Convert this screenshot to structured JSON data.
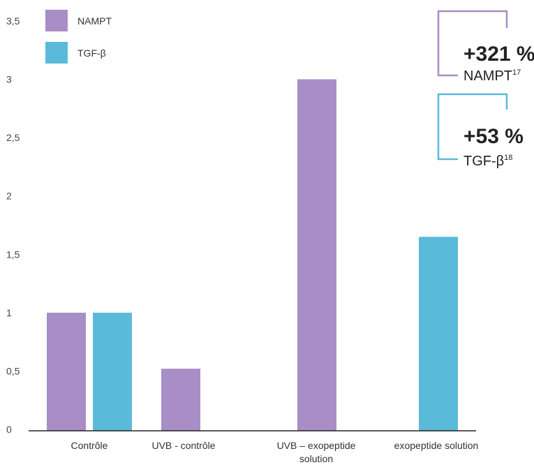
{
  "chart_data": {
    "type": "bar",
    "title": "",
    "xlabel": "",
    "ylabel": "",
    "ylim": [
      0,
      3.5
    ],
    "yticks": [
      "0",
      "0,5",
      "1",
      "1,5",
      "2",
      "2,5",
      "3",
      "3,5"
    ],
    "categories": [
      [
        "Contrôle"
      ],
      [
        "UVB - contrôle"
      ],
      [
        "UVB – exopeptide",
        "solution"
      ],
      [
        "exopeptide solution"
      ]
    ],
    "series": [
      {
        "name": "NAMPT",
        "color": "#a98dc6",
        "values": [
          1,
          0.52,
          3.0,
          null
        ]
      },
      {
        "name": "TGF-β",
        "color": "#5bbad9",
        "values": [
          1,
          null,
          null,
          1.65
        ]
      }
    ],
    "legend": "top-left",
    "grid": false,
    "annotations": [
      {
        "value": "+321 %",
        "label": "NAMPT",
        "sup": "17",
        "color": "#a98dc6"
      },
      {
        "value": "+53 %",
        "label": "TGF-β",
        "sup": "18",
        "color": "#5bbad9"
      }
    ]
  }
}
